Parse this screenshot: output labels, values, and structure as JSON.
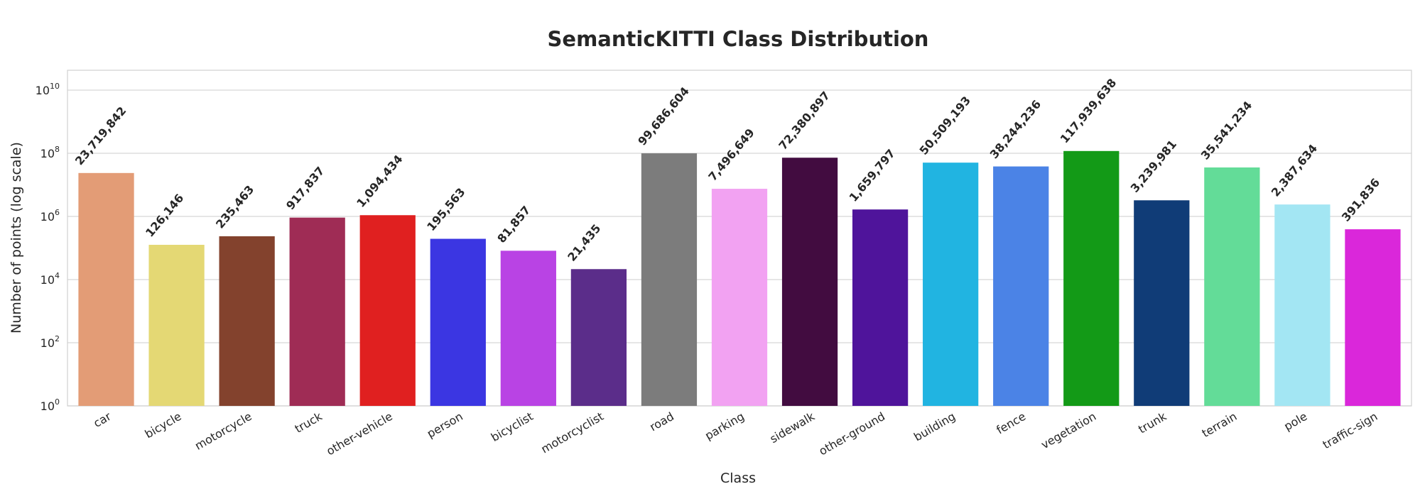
{
  "chart_data": {
    "type": "bar",
    "title": "SemanticKITTI Class Distribution",
    "xlabel": "Class",
    "ylabel": "Number of points (log scale)",
    "yscale": "log",
    "ylim": [
      1,
      40000000000
    ],
    "yticks": [
      {
        "value": 1,
        "base": "10",
        "exp": "0"
      },
      {
        "value": 100,
        "base": "10",
        "exp": "2"
      },
      {
        "value": 10000,
        "base": "10",
        "exp": "4"
      },
      {
        "value": 1000000,
        "base": "10",
        "exp": "6"
      },
      {
        "value": 100000000,
        "base": "10",
        "exp": "8"
      },
      {
        "value": 10000000000,
        "base": "10",
        "exp": "10"
      }
    ],
    "grid": true,
    "categories": [
      "car",
      "bicycle",
      "motorcycle",
      "truck",
      "other-vehicle",
      "person",
      "bicyclist",
      "motorcyclist",
      "road",
      "parking",
      "sidewalk",
      "other-ground",
      "building",
      "fence",
      "vegetation",
      "trunk",
      "terrain",
      "pole",
      "traffic-sign"
    ],
    "values": [
      23719842,
      126146,
      235463,
      917837,
      1094434,
      195563,
      81857,
      21435,
      99686604,
      7496649,
      72380897,
      1659797,
      50509193,
      38244236,
      117939638,
      3239981,
      35541234,
      2387634,
      391836
    ],
    "value_labels": [
      "23,719,842",
      "126,146",
      "235,463",
      "917,837",
      "1,094,434",
      "195,563",
      "81,857",
      "21,435",
      "99,686,604",
      "7,496,649",
      "72,380,897",
      "1,659,797",
      "50,509,193",
      "38,244,236",
      "117,939,638",
      "3,239,981",
      "35,541,234",
      "2,387,634",
      "391,836"
    ],
    "colors": [
      "#e39c76",
      "#e4d874",
      "#83422d",
      "#9f2c55",
      "#e02020",
      "#3b36e2",
      "#b943e4",
      "#5b2d8a",
      "#7c7c7c",
      "#f2a2f2",
      "#420c40",
      "#4f149b",
      "#21b4e1",
      "#4b83e6",
      "#139a17",
      "#103c77",
      "#63dc98",
      "#a3e6f3",
      "#da27da"
    ]
  }
}
